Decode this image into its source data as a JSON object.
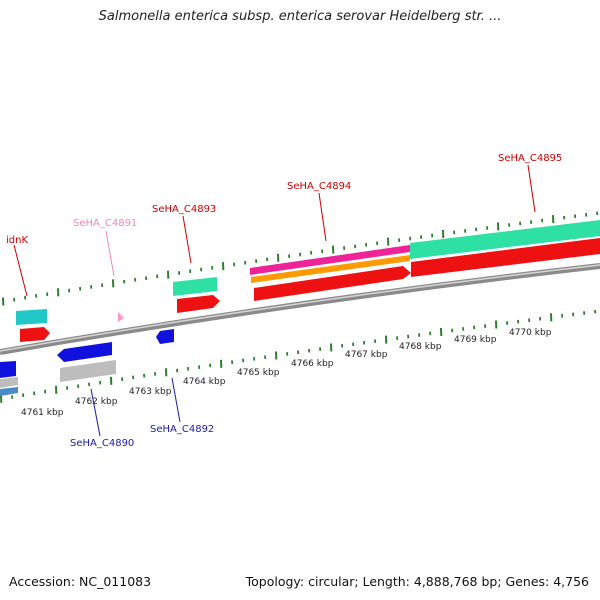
{
  "title": "Salmonella enterica subsp. enterica serovar Heidelberg str. ...",
  "footer": {
    "accession": "Accession: NC_011083",
    "summary": "Topology: circular; Length: 4,888,768 bp; Genes: 4,756"
  },
  "colors": {
    "backbone": "#8a8a8a",
    "tick": "#2e7d2e",
    "forward_label": "#cc0000",
    "reverse_label": "#1a1aaa",
    "pseudo_label": "#ee88bb",
    "red_gene": "#ee1111",
    "teal_gene": "#22c8c8",
    "mint_gene": "#2ee0a4",
    "blue_gene": "#1111dd",
    "magenta_gene": "#ee2299",
    "orange_gene": "#ff9a00",
    "grey_gene": "#bdbdbd",
    "steel_gene": "#4a8ac8",
    "pink_gene": "#ff99cc"
  },
  "kbp_ticks": [
    "4761 kbp",
    "4762 kbp",
    "4763 kbp",
    "4764 kbp",
    "4765 kbp",
    "4766 kbp",
    "4767 kbp",
    "4768 kbp",
    "4769 kbp",
    "4770 kbp"
  ],
  "gene_labels": {
    "idnK": "idnK",
    "c4890": "SeHA_C4890",
    "c4891": "SeHA_C4891",
    "c4892": "SeHA_C4892",
    "c4893": "SeHA_C4893",
    "c4894": "SeHA_C4894",
    "c4895": "SeHA_C4895"
  }
}
